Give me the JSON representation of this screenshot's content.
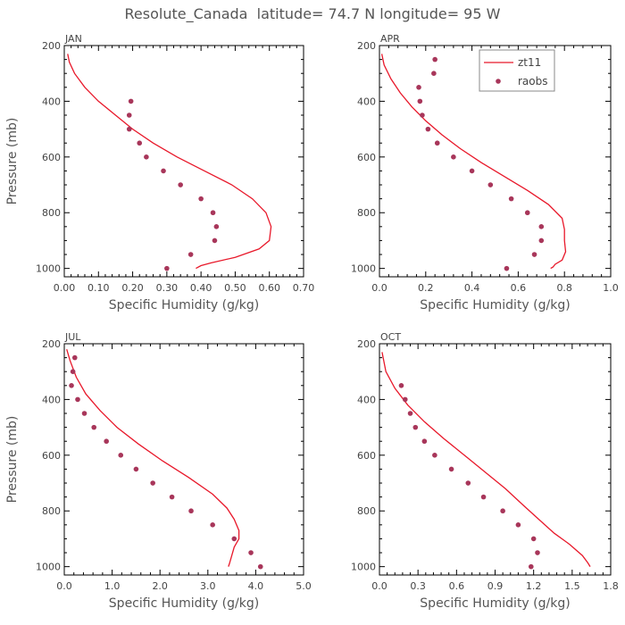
{
  "title": "Resolute_Canada  latitude= 74.7 N longitude= 95 W",
  "colors": {
    "model": "#e8182a",
    "obs": "#a8365a",
    "frame": "#000000",
    "text": "#555555"
  },
  "legend": {
    "model_label": "zt11",
    "obs_label": "raobs"
  },
  "chart_data": [
    {
      "type": "line",
      "panel": "JAN",
      "xlabel": "Specific Humidity (g/kg)",
      "ylabel": "Pressure (mb)",
      "xlim": [
        0,
        0.7
      ],
      "ylim": [
        1030,
        200
      ],
      "xticks": [
        0,
        0.1,
        0.2,
        0.3,
        0.4,
        0.5,
        0.6,
        0.7
      ],
      "xtick_labels": [
        "0.00",
        "0.10",
        "0.20",
        "0.30",
        "0.40",
        "0.50",
        "0.60",
        "0.70"
      ],
      "yticks": [
        200,
        400,
        600,
        800,
        1000
      ],
      "ytick_labels": [
        "200",
        "400",
        "600",
        "800",
        "1000"
      ],
      "series": [
        {
          "name": "zt11",
          "kind": "line",
          "x": [
            0.01,
            0.015,
            0.03,
            0.06,
            0.1,
            0.15,
            0.2,
            0.26,
            0.33,
            0.41,
            0.49,
            0.55,
            0.59,
            0.605,
            0.6,
            0.57,
            0.5,
            0.43,
            0.4,
            0.385
          ],
          "y": [
            230,
            260,
            300,
            350,
            400,
            450,
            500,
            550,
            600,
            650,
            700,
            750,
            800,
            850,
            900,
            930,
            960,
            980,
            990,
            1000
          ]
        },
        {
          "name": "raobs",
          "kind": "scatter",
          "x": [
            0.195,
            0.19,
            0.19,
            0.22,
            0.24,
            0.29,
            0.34,
            0.4,
            0.435,
            0.445,
            0.44,
            0.37,
            0.3
          ],
          "y": [
            400,
            450,
            500,
            550,
            600,
            650,
            700,
            750,
            800,
            850,
            900,
            950,
            1000
          ]
        }
      ]
    },
    {
      "type": "line",
      "panel": "APR",
      "xlabel": "Specific Humidity (g/kg)",
      "ylabel": "",
      "xlim": [
        0,
        1.0
      ],
      "ylim": [
        1030,
        200
      ],
      "xticks": [
        0,
        0.2,
        0.4,
        0.6,
        0.8,
        1.0
      ],
      "xtick_labels": [
        "0.0",
        "0.2",
        "0.4",
        "0.6",
        "0.8",
        "1.0"
      ],
      "yticks": [
        200,
        400,
        600,
        800,
        1000
      ],
      "ytick_labels": [
        "200",
        "400",
        "600",
        "800",
        "1000"
      ],
      "series": [
        {
          "name": "zt11",
          "kind": "line",
          "x": [
            0.01,
            0.02,
            0.05,
            0.09,
            0.14,
            0.2,
            0.27,
            0.35,
            0.44,
            0.54,
            0.64,
            0.73,
            0.79,
            0.8,
            0.8,
            0.805,
            0.79,
            0.76,
            0.75,
            0.74
          ],
          "y": [
            230,
            270,
            320,
            370,
            420,
            470,
            520,
            570,
            620,
            670,
            720,
            770,
            820,
            860,
            900,
            940,
            970,
            985,
            995,
            1000
          ]
        },
        {
          "name": "raobs",
          "kind": "scatter",
          "x": [
            0.24,
            0.235,
            0.17,
            0.175,
            0.185,
            0.21,
            0.25,
            0.32,
            0.4,
            0.48,
            0.57,
            0.64,
            0.7,
            0.7,
            0.67,
            0.55
          ],
          "y": [
            250,
            300,
            350,
            400,
            450,
            500,
            550,
            600,
            650,
            700,
            750,
            800,
            850,
            900,
            950,
            1000
          ]
        }
      ]
    },
    {
      "type": "line",
      "panel": "JUL",
      "xlabel": "Specific Humidity (g/kg)",
      "ylabel": "Pressure (mb)",
      "xlim": [
        0,
        5.0
      ],
      "ylim": [
        1030,
        200
      ],
      "xticks": [
        0,
        1,
        2,
        3,
        4,
        5
      ],
      "xtick_labels": [
        "0.0",
        "1.0",
        "2.0",
        "3.0",
        "4.0",
        "5.0"
      ],
      "yticks": [
        200,
        400,
        600,
        800,
        1000
      ],
      "ytick_labels": [
        "200",
        "400",
        "600",
        "800",
        "1000"
      ],
      "series": [
        {
          "name": "zt11",
          "kind": "line",
          "x": [
            0.05,
            0.12,
            0.25,
            0.45,
            0.75,
            1.1,
            1.55,
            2.05,
            2.6,
            3.1,
            3.4,
            3.55,
            3.65,
            3.65,
            3.55,
            3.5,
            3.45,
            3.43
          ],
          "y": [
            220,
            260,
            320,
            380,
            440,
            500,
            560,
            620,
            680,
            740,
            790,
            830,
            870,
            900,
            930,
            960,
            990,
            1000
          ]
        },
        {
          "name": "raobs",
          "kind": "scatter",
          "x": [
            0.22,
            0.18,
            0.15,
            0.28,
            0.42,
            0.62,
            0.88,
            1.18,
            1.5,
            1.85,
            2.25,
            2.65,
            3.1,
            3.55,
            3.9,
            4.1
          ],
          "y": [
            250,
            300,
            350,
            400,
            450,
            500,
            550,
            600,
            650,
            700,
            750,
            800,
            850,
            900,
            950,
            1000
          ]
        }
      ]
    },
    {
      "type": "line",
      "panel": "OCT",
      "xlabel": "Specific Humidity (g/kg)",
      "ylabel": "",
      "xlim": [
        0,
        1.8
      ],
      "ylim": [
        1030,
        200
      ],
      "xticks": [
        0,
        0.3,
        0.6,
        0.9,
        1.2,
        1.5,
        1.8
      ],
      "xtick_labels": [
        "0.0",
        "0.3",
        "0.6",
        "0.9",
        "1.2",
        "1.5",
        "1.8"
      ],
      "yticks": [
        200,
        400,
        600,
        800,
        1000
      ],
      "ytick_labels": [
        "200",
        "400",
        "600",
        "800",
        "1000"
      ],
      "series": [
        {
          "name": "zt11",
          "kind": "line",
          "x": [
            0.02,
            0.05,
            0.12,
            0.22,
            0.35,
            0.5,
            0.66,
            0.82,
            0.98,
            1.12,
            1.24,
            1.36,
            1.48,
            1.58,
            1.62,
            1.64
          ],
          "y": [
            230,
            300,
            360,
            420,
            480,
            540,
            600,
            660,
            720,
            780,
            830,
            880,
            920,
            960,
            985,
            1000
          ]
        },
        {
          "name": "raobs",
          "kind": "scatter",
          "x": [
            0.17,
            0.2,
            0.24,
            0.28,
            0.35,
            0.43,
            0.56,
            0.69,
            0.81,
            0.96,
            1.08,
            1.2,
            1.23,
            1.18
          ],
          "y": [
            350,
            400,
            450,
            500,
            550,
            600,
            650,
            700,
            750,
            800,
            850,
            900,
            950,
            1000
          ]
        }
      ]
    }
  ]
}
